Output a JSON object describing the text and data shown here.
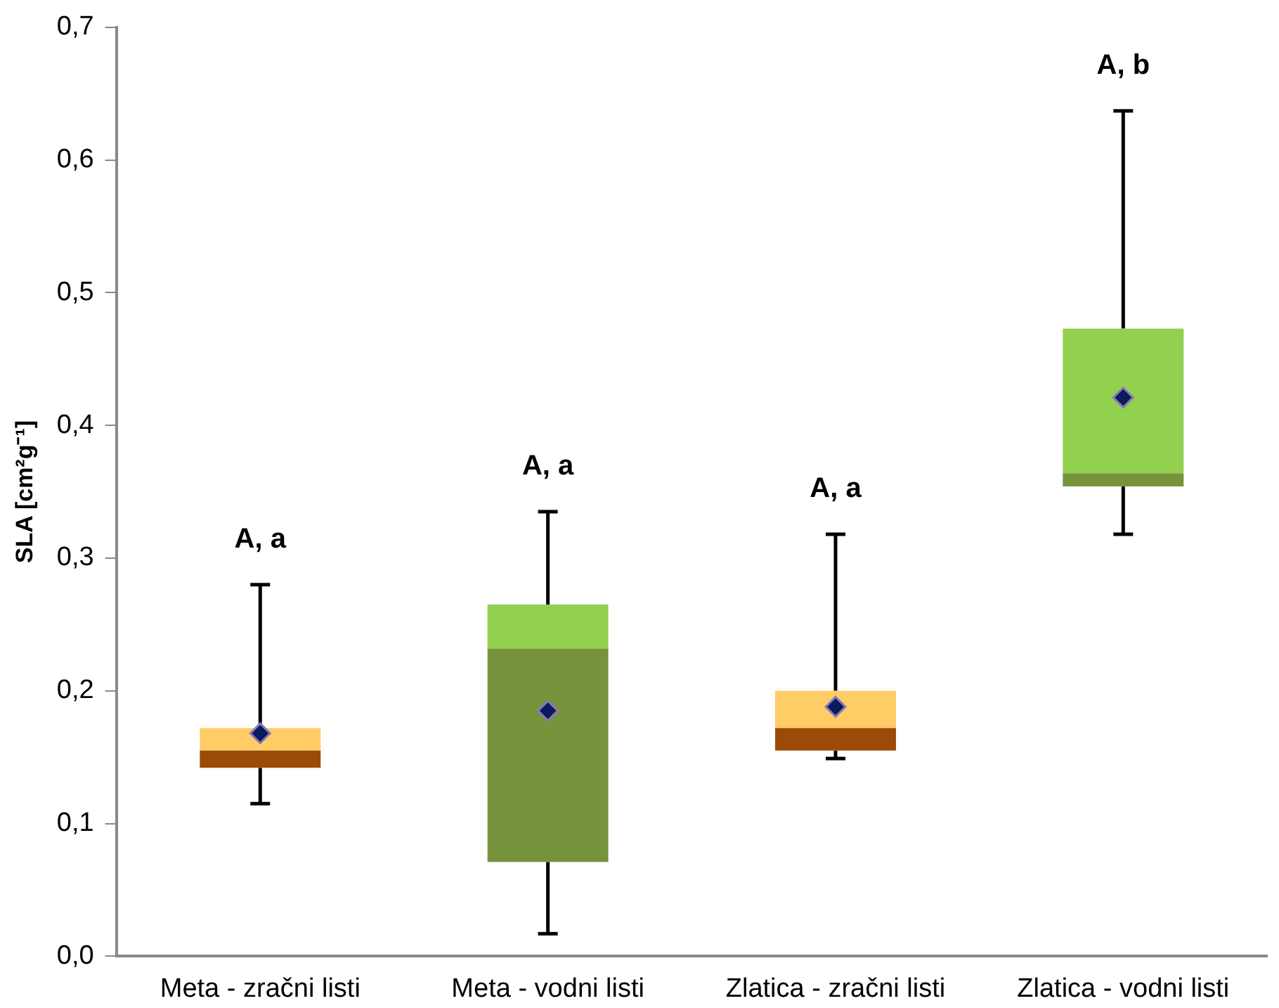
{
  "chart_data": {
    "type": "box",
    "ylabel": "SLA [cm²g⁻¹]",
    "categories": [
      "Meta - zračni listi",
      "Meta - vodni listi",
      "Zlatica - zračni listi",
      "Zlatica - vodni listi"
    ],
    "boxes": [
      {
        "low": 0.115,
        "q1": 0.142,
        "median": 0.155,
        "q3": 0.172,
        "high": 0.28,
        "mean": 0.168
      },
      {
        "low": 0.017,
        "q1": 0.071,
        "median": 0.232,
        "q3": 0.265,
        "high": 0.335,
        "mean": 0.185
      },
      {
        "low": 0.149,
        "q1": 0.155,
        "median": 0.172,
        "q3": 0.2,
        "high": 0.318,
        "mean": 0.188
      },
      {
        "low": 0.318,
        "q1": 0.354,
        "median": 0.364,
        "q3": 0.473,
        "high": 0.637,
        "mean": 0.421
      }
    ],
    "colors": [
      [
        "#9c4a08",
        "#ffcc66"
      ],
      [
        "#77933c",
        "#92d050"
      ],
      [
        "#9c4a08",
        "#ffcc66"
      ],
      [
        "#77933c",
        "#92d050"
      ]
    ],
    "marker": "diamond",
    "ylim": [
      0,
      0.7
    ],
    "yticks": [
      {
        "value": 0,
        "label": "0,0"
      },
      {
        "value": 0.1,
        "label": "0,1"
      },
      {
        "value": 0.2,
        "label": "0,2"
      },
      {
        "value": 0.3,
        "label": "0,3"
      },
      {
        "value": 0.4,
        "label": "0,4"
      },
      {
        "value": 0.5,
        "label": "0,5"
      },
      {
        "value": 0.6,
        "label": "0,6"
      },
      {
        "value": 0.7,
        "label": "0,7"
      }
    ],
    "grid": false,
    "legend": false,
    "annotations": [
      "A, a",
      "A, a",
      "A, a",
      "A, b"
    ]
  }
}
